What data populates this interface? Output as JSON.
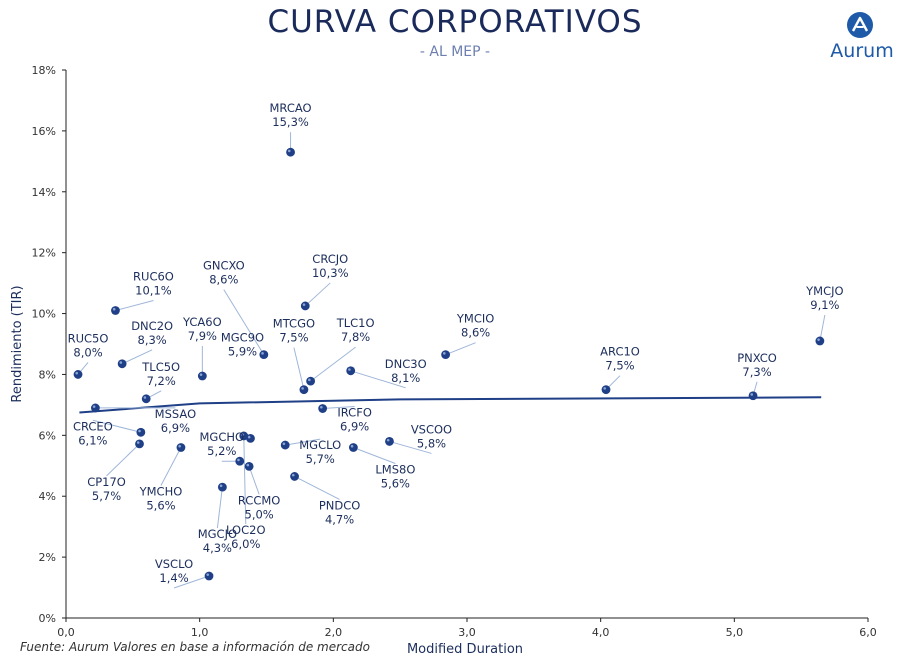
{
  "header": {
    "title": "CURVA CORPORATIVOS",
    "subtitle": "- AL MEP -",
    "logo_text": "Aurum"
  },
  "footer": {
    "source": "Fuente: Aurum Valores en base a información de mercado"
  },
  "colors": {
    "title": "#1a2a5a",
    "point": "#1f3f86",
    "trend": "#1f3f86",
    "leader": "#9fb6d9",
    "logo": "#1e5aa8"
  },
  "chart_data": {
    "type": "scatter",
    "xlabel": "Modified Duration",
    "ylabel": "Rendimiento (TIR)",
    "xlim": [
      0,
      6
    ],
    "ylim": [
      0,
      18
    ],
    "x_ticks": [
      "0,0",
      "1,0",
      "2,0",
      "3,0",
      "4,0",
      "5,0",
      "6,0"
    ],
    "y_ticks": [
      "0%",
      "2%",
      "4%",
      "6%",
      "8%",
      "10%",
      "12%",
      "14%",
      "16%",
      "18%"
    ],
    "grid": false,
    "trendline": {
      "type": "log",
      "points": [
        [
          0.1,
          6.75
        ],
        [
          1.0,
          7.05
        ],
        [
          2.5,
          7.18
        ],
        [
          5.65,
          7.25
        ]
      ]
    },
    "points": [
      {
        "name": "MRCAO",
        "value_label": "15,3%",
        "x": 1.68,
        "y": 15.3
      },
      {
        "name": "RUC6O",
        "value_label": "10,1%",
        "x": 0.37,
        "y": 10.1
      },
      {
        "name": "GNCXO",
        "value_label": "8,6%",
        "x": 1.48,
        "y": 8.65
      },
      {
        "name": "CRCJO",
        "value_label": "10,3%",
        "x": 1.79,
        "y": 10.25
      },
      {
        "name": "YCA6O",
        "value_label": "7,9%",
        "x": 1.02,
        "y": 7.95
      },
      {
        "name": "DNC2O",
        "value_label": "8,3%",
        "x": 0.42,
        "y": 8.35
      },
      {
        "name": "RUC5O",
        "value_label": "8,0%",
        "x": 0.09,
        "y": 8.0
      },
      {
        "name": "MGC9O",
        "value_label": "5,9%",
        "x": 1.38,
        "y": 5.9
      },
      {
        "name": "MTCGO",
        "value_label": "7,5%",
        "x": 1.78,
        "y": 7.5
      },
      {
        "name": "TLC1O",
        "value_label": "7,8%",
        "x": 1.83,
        "y": 7.78
      },
      {
        "name": "YMCIO",
        "value_label": "8,6%",
        "x": 2.84,
        "y": 8.65
      },
      {
        "name": "DNC3O",
        "value_label": "8,1%",
        "x": 2.13,
        "y": 8.12
      },
      {
        "name": "ARC1O",
        "value_label": "7,5%",
        "x": 4.04,
        "y": 7.5
      },
      {
        "name": "PNXCO",
        "value_label": "7,3%",
        "x": 5.14,
        "y": 7.3
      },
      {
        "name": "YMCJO",
        "value_label": "9,1%",
        "x": 5.64,
        "y": 9.1
      },
      {
        "name": "TLC5O",
        "value_label": "7,2%",
        "x": 0.6,
        "y": 7.2
      },
      {
        "name": "MSSAO",
        "value_label": "6,9%",
        "x": 0.22,
        "y": 6.9
      },
      {
        "name": "IRCFO",
        "value_label": "6,9%",
        "x": 1.92,
        "y": 6.88
      },
      {
        "name": "CRCEO",
        "value_label": "6,1%",
        "x": 0.56,
        "y": 6.1
      },
      {
        "name": "MGCHO",
        "value_label": "5,2%",
        "x": 1.3,
        "y": 5.15
      },
      {
        "name": "VSCOO",
        "value_label": "5,8%",
        "x": 2.42,
        "y": 5.8
      },
      {
        "name": "MGCLO",
        "value_label": "5,7%",
        "x": 1.64,
        "y": 5.68
      },
      {
        "name": "LMS8O",
        "value_label": "5,6%",
        "x": 2.15,
        "y": 5.6
      },
      {
        "name": "CP17O",
        "value_label": "5,7%",
        "x": 0.55,
        "y": 5.72
      },
      {
        "name": "YMCHO",
        "value_label": "5,6%",
        "x": 0.86,
        "y": 5.6
      },
      {
        "name": "MGCJO",
        "value_label": "4,3%",
        "x": 1.17,
        "y": 4.3
      },
      {
        "name": "RCCMO",
        "value_label": "5,0%",
        "x": 1.37,
        "y": 4.98
      },
      {
        "name": "PNDCO",
        "value_label": "4,7%",
        "x": 1.71,
        "y": 4.65
      },
      {
        "name": "LOC2O",
        "value_label": "6,0%",
        "x": 1.33,
        "y": 5.98
      },
      {
        "name": "VSCLO",
        "value_label": "1,4%",
        "x": 1.07,
        "y": 1.38
      }
    ]
  }
}
